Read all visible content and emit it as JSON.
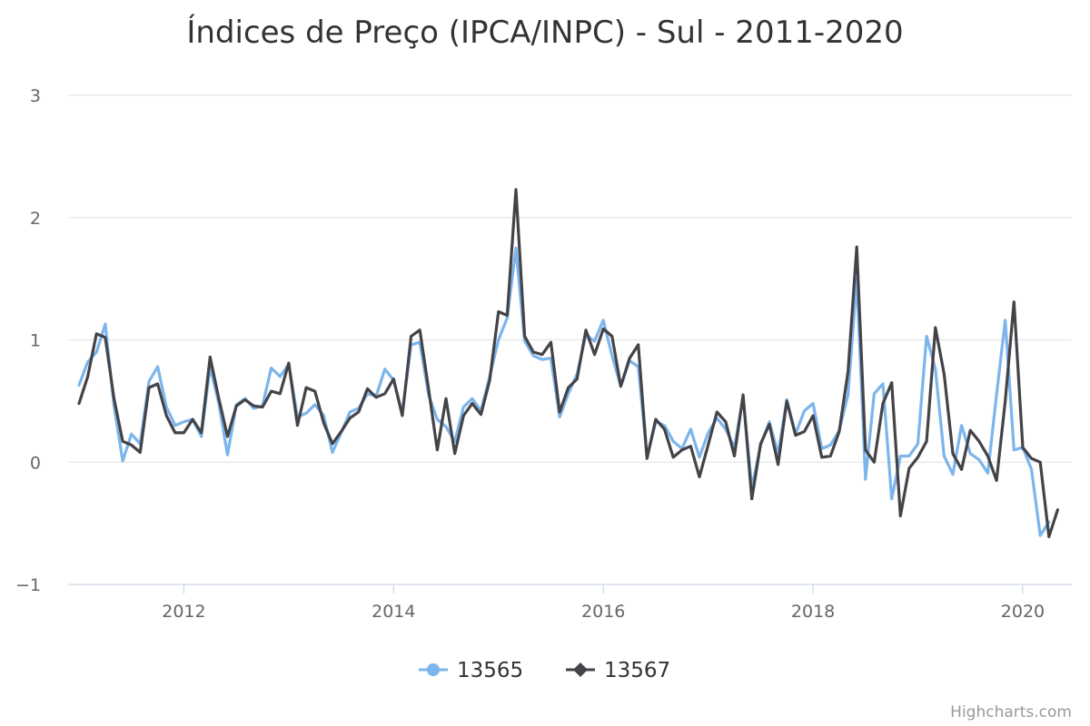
{
  "chart_data": {
    "type": "line",
    "title": "Índices de Preço (IPCA/INPC) - Sul - 2011-2020",
    "xlabel": "",
    "ylabel": "",
    "x_start": "2011-01",
    "x_end": "2020-05",
    "x_tick_labels": [
      "2012",
      "2014",
      "2016",
      "2018",
      "2020"
    ],
    "y_tick_labels": [
      "3",
      "2",
      "1",
      "0",
      "−1"
    ],
    "ylim": [
      -1,
      3
    ],
    "grid": true,
    "legend_position": "bottom-center",
    "series": [
      {
        "name": "13565",
        "color": "#7cb5ec",
        "marker": "circle",
        "values": [
          0.63,
          0.82,
          0.9,
          1.13,
          0.46,
          0.01,
          0.23,
          0.15,
          0.66,
          0.78,
          0.45,
          0.3,
          0.33,
          0.35,
          0.21,
          0.78,
          0.48,
          0.06,
          0.47,
          0.52,
          0.44,
          0.46,
          0.77,
          0.7,
          0.8,
          0.37,
          0.4,
          0.47,
          0.38,
          0.08,
          0.24,
          0.41,
          0.44,
          0.56,
          0.54,
          0.76,
          0.67,
          0.4,
          0.96,
          0.98,
          0.55,
          0.35,
          0.29,
          0.17,
          0.45,
          0.52,
          0.42,
          0.7,
          1.0,
          1.18,
          1.75,
          0.99,
          0.87,
          0.84,
          0.85,
          0.37,
          0.56,
          0.72,
          1.04,
          0.99,
          1.16,
          0.87,
          0.62,
          0.83,
          0.78,
          0.04,
          0.33,
          0.3,
          0.17,
          0.11,
          0.27,
          0.04,
          0.24,
          0.36,
          0.27,
          0.12,
          0.53,
          -0.21,
          0.14,
          0.33,
          0.07,
          0.51,
          0.23,
          0.42,
          0.48,
          0.11,
          0.14,
          0.26,
          0.55,
          1.5,
          -0.14,
          0.56,
          0.64,
          -0.3,
          0.05,
          0.05,
          0.15,
          1.03,
          0.76,
          0.05,
          -0.1,
          0.3,
          0.07,
          0.02,
          -0.09,
          0.55,
          1.16,
          0.1,
          0.12,
          -0.06,
          -0.6,
          -0.49
        ]
      },
      {
        "name": "13567",
        "color": "#434348",
        "marker": "diamond",
        "values": [
          0.48,
          0.7,
          1.05,
          1.02,
          0.52,
          0.17,
          0.14,
          0.08,
          0.61,
          0.64,
          0.38,
          0.24,
          0.24,
          0.35,
          0.24,
          0.86,
          0.52,
          0.21,
          0.46,
          0.51,
          0.46,
          0.45,
          0.58,
          0.56,
          0.81,
          0.3,
          0.61,
          0.58,
          0.32,
          0.15,
          0.25,
          0.36,
          0.41,
          0.6,
          0.53,
          0.56,
          0.68,
          0.38,
          1.03,
          1.08,
          0.6,
          0.1,
          0.52,
          0.07,
          0.38,
          0.48,
          0.39,
          0.67,
          1.23,
          1.2,
          2.23,
          1.03,
          0.9,
          0.88,
          0.98,
          0.41,
          0.61,
          0.68,
          1.08,
          0.88,
          1.09,
          1.03,
          0.62,
          0.85,
          0.96,
          0.03,
          0.35,
          0.27,
          0.04,
          0.1,
          0.13,
          -0.12,
          0.14,
          0.41,
          0.33,
          0.05,
          0.55,
          -0.3,
          0.15,
          0.31,
          -0.02,
          0.5,
          0.22,
          0.25,
          0.38,
          0.04,
          0.05,
          0.25,
          0.74,
          1.76,
          0.1,
          0.0,
          0.48,
          0.65,
          -0.44,
          -0.05,
          0.04,
          0.17,
          1.1,
          0.72,
          0.07,
          -0.06,
          0.26,
          0.17,
          0.05,
          -0.15,
          0.5,
          1.31,
          0.12,
          0.03,
          0.0,
          -0.61,
          -0.39
        ]
      }
    ]
  },
  "credits": "Highcharts.com"
}
